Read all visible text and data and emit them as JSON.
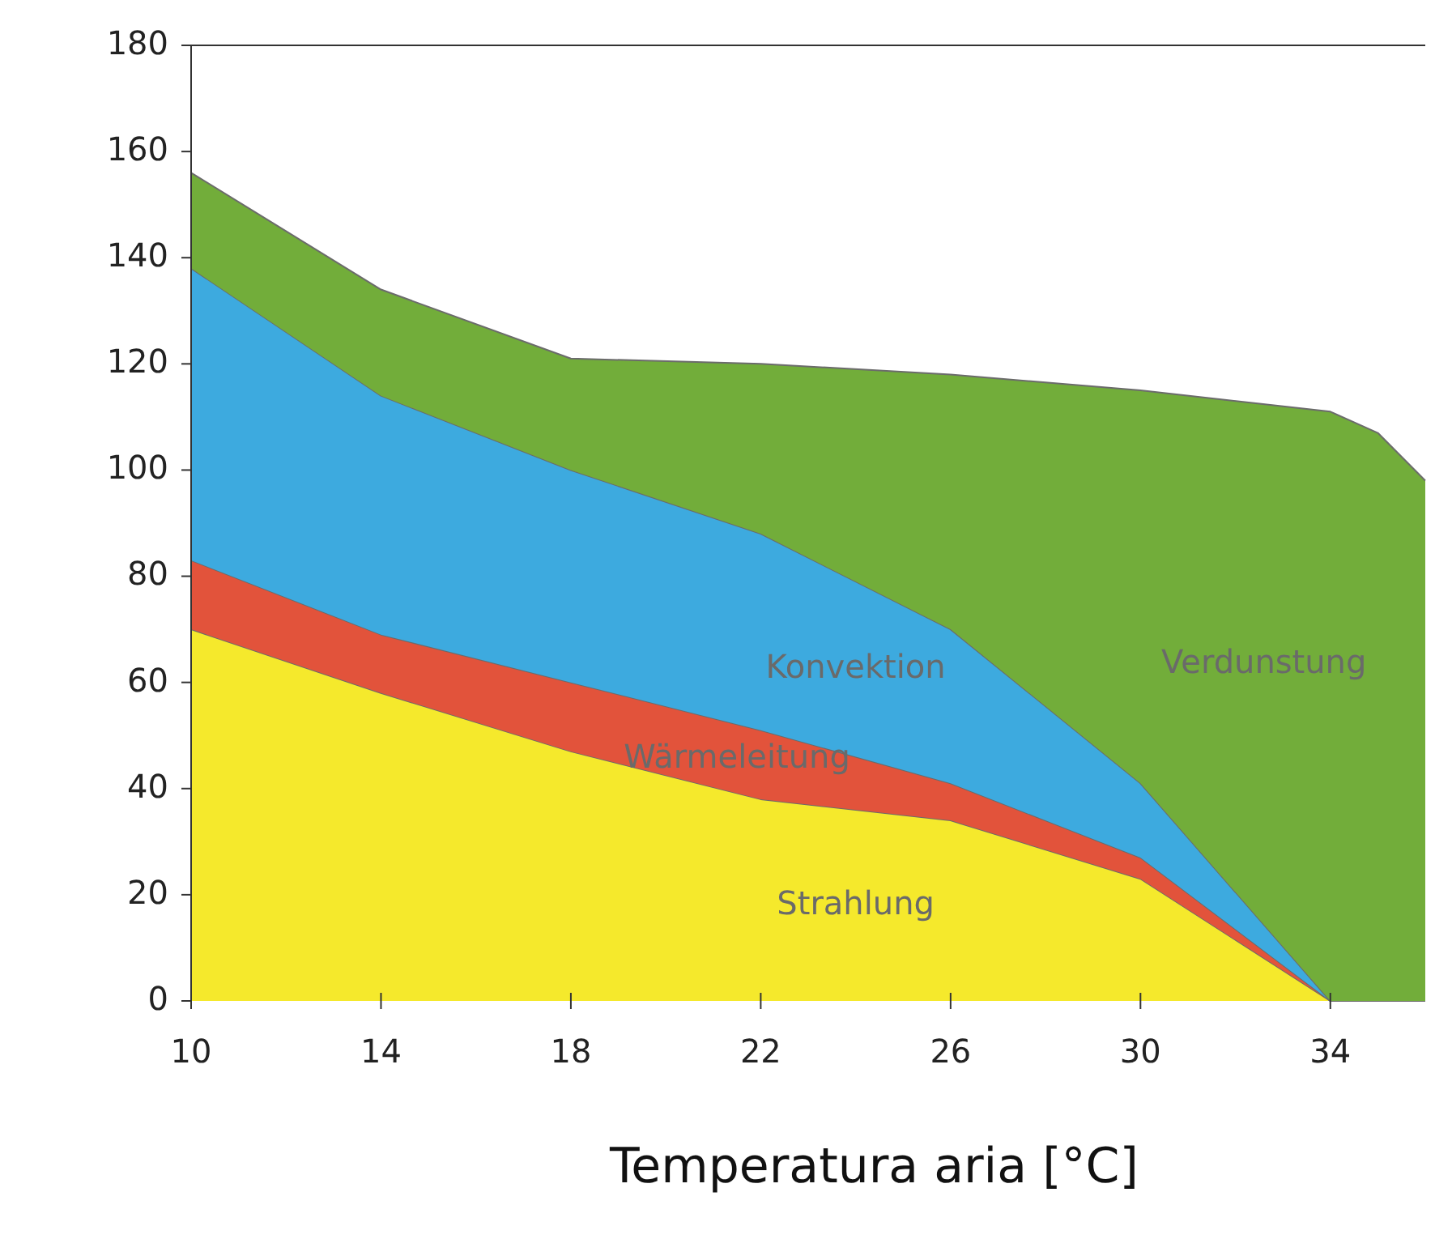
{
  "chart_data": {
    "type": "area",
    "stacked": true,
    "xlabel": "Temperatura aria [°C]",
    "x": [
      10,
      14,
      18,
      22,
      26,
      30,
      34,
      35,
      36
    ],
    "xlim": [
      10,
      36
    ],
    "xticks": [
      10,
      14,
      18,
      22,
      26,
      30,
      34
    ],
    "ylim": [
      0,
      180
    ],
    "yticks": [
      0,
      20,
      40,
      60,
      80,
      100,
      120,
      140,
      160,
      180
    ],
    "grid": false,
    "series": [
      {
        "name": "Strahlung",
        "color": "#f5e92c",
        "values": [
          70,
          58,
          47,
          38,
          34,
          23,
          0,
          0,
          0
        ]
      },
      {
        "name": "Wärmeleitung",
        "color": "#e2533b",
        "values": [
          13,
          11,
          13,
          13,
          7,
          4,
          0,
          0,
          0
        ]
      },
      {
        "name": "Konvektion",
        "color": "#3daadf",
        "values": [
          55,
          45,
          40,
          37,
          29,
          14,
          0,
          0,
          0
        ]
      },
      {
        "name": "Verdunstung",
        "color": "#72ad3a",
        "values": [
          18,
          20,
          21,
          32,
          48,
          74,
          111,
          107,
          98
        ]
      }
    ]
  }
}
